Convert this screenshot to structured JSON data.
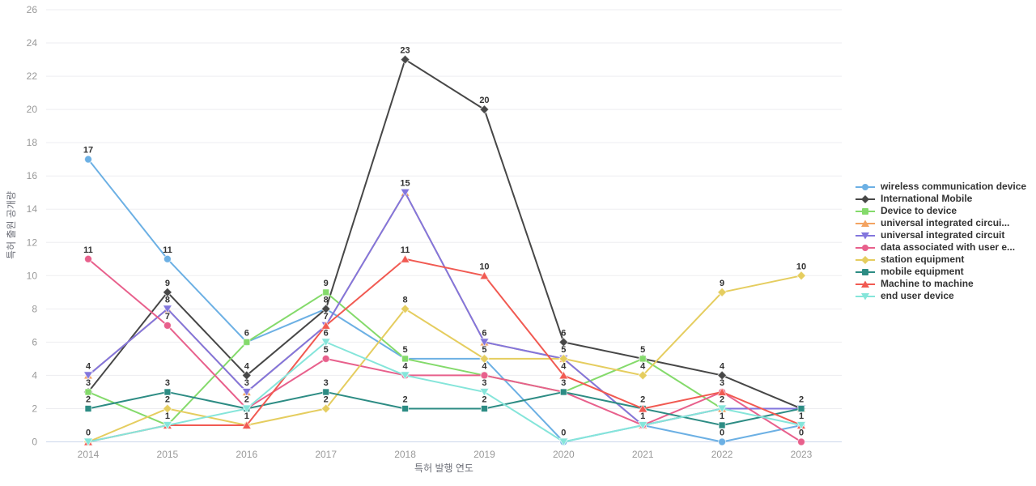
{
  "chart_data": {
    "type": "line",
    "title": "",
    "xlabel": "특허 발행 연도",
    "ylabel": "특허 출원 공개량",
    "x": [
      2014,
      2015,
      2016,
      2017,
      2018,
      2019,
      2020,
      2021,
      2022,
      2023
    ],
    "ylim": [
      0,
      26
    ],
    "ytick_step": 2,
    "grid": "horizontal-only",
    "legend_position": "right",
    "point_labels": "values shown above points, duplicates at same point shown once",
    "axis_colors": {
      "tick_text": "#999999",
      "axis_name_text": "#6e7079",
      "grid_line": "#ededf0",
      "x_axis_line": "#ccd6eb",
      "value_label": "#333333"
    },
    "series": [
      {
        "name": "wireless communication device",
        "color": "#6cb0e4",
        "marker": "circle",
        "values": [
          17,
          11,
          6,
          8,
          5,
          5,
          0,
          1,
          0,
          1
        ]
      },
      {
        "name": "International Mobile",
        "color": "#474747",
        "marker": "diamond",
        "values": [
          3,
          9,
          4,
          8,
          23,
          20,
          6,
          5,
          4,
          2
        ]
      },
      {
        "name": "Device to device",
        "color": "#84da6b",
        "marker": "square",
        "values": [
          3,
          1,
          6,
          9,
          5,
          4,
          3,
          5,
          2,
          2
        ]
      },
      {
        "name": "universal integrated circui...",
        "color": "#f3a361",
        "marker": "triangle",
        "values": [
          4,
          8,
          3,
          7,
          15,
          6,
          5,
          1,
          2,
          2
        ]
      },
      {
        "name": "universal integrated circuit",
        "color": "#8276dd",
        "marker": "triangle-down",
        "values": [
          4,
          8,
          3,
          7,
          15,
          6,
          5,
          1,
          2,
          2
        ]
      },
      {
        "name": "data associated with user e...",
        "color": "#e8608c",
        "marker": "circle",
        "values": [
          11,
          7,
          2,
          5,
          4,
          4,
          3,
          1,
          3,
          0
        ]
      },
      {
        "name": "station equipment",
        "color": "#e5cd5f",
        "marker": "diamond",
        "values": [
          0,
          2,
          1,
          2,
          8,
          5,
          5,
          4,
          9,
          10
        ]
      },
      {
        "name": "mobile equipment",
        "color": "#2d8c84",
        "marker": "square",
        "values": [
          2,
          3,
          2,
          3,
          2,
          2,
          3,
          2,
          1,
          2
        ]
      },
      {
        "name": "Machine to machine",
        "color": "#f15a52",
        "marker": "triangle",
        "values": [
          0,
          1,
          1,
          7,
          11,
          10,
          4,
          2,
          3,
          1
        ]
      },
      {
        "name": "end user device",
        "color": "#85e5da",
        "marker": "triangle-down",
        "values": [
          0,
          1,
          2,
          6,
          4,
          3,
          0,
          1,
          2,
          1
        ]
      }
    ]
  }
}
